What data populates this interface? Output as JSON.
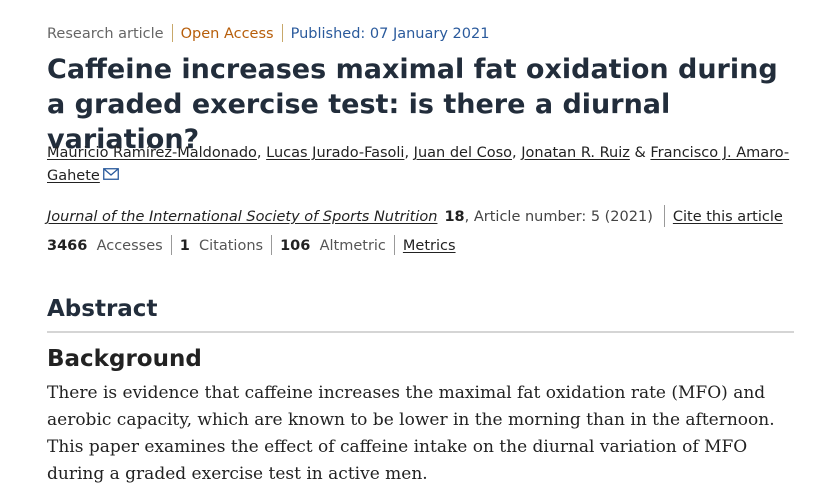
{
  "meta": {
    "type": "Research article",
    "access": "Open Access",
    "published": "Published: 07 January 2021"
  },
  "title": "Caffeine increases maximal fat oxidation during a graded exercise test: is there a diurnal variation?",
  "authors": [
    "Mauricio Ramírez-Maldonado",
    "Lucas Jurado-Fasoli",
    "Juan del Coso",
    "Jonatan R. Ruiz",
    "Francisco J. Amaro-Gahete"
  ],
  "authors_and": "&",
  "citation": {
    "journal": "Journal of the International Society of Sports Nutrition",
    "volume": "18",
    "article": ", Article number: 5 (2021)",
    "cite_label": "Cite this article"
  },
  "metrics": {
    "accesses_value": "3466",
    "accesses_label": "Accesses",
    "citations_value": "1",
    "citations_label": "Citations",
    "altmetric_value": "106",
    "altmetric_label": "Altmetric",
    "metrics_link": "Metrics"
  },
  "abstract": {
    "heading": "Abstract",
    "background_heading": "Background",
    "background_text": "There is evidence that caffeine increases the maximal fat oxidation rate (MFO) and aerobic capacity, which are known to be lower in the morning than in the afternoon. This paper examines the effect of caffeine intake on the diurnal variation of MFO during a graded exercise test in active men."
  },
  "colors": {
    "open_access": "#b75e0a",
    "published": "#2a5a9c",
    "title": "#222d3b"
  }
}
